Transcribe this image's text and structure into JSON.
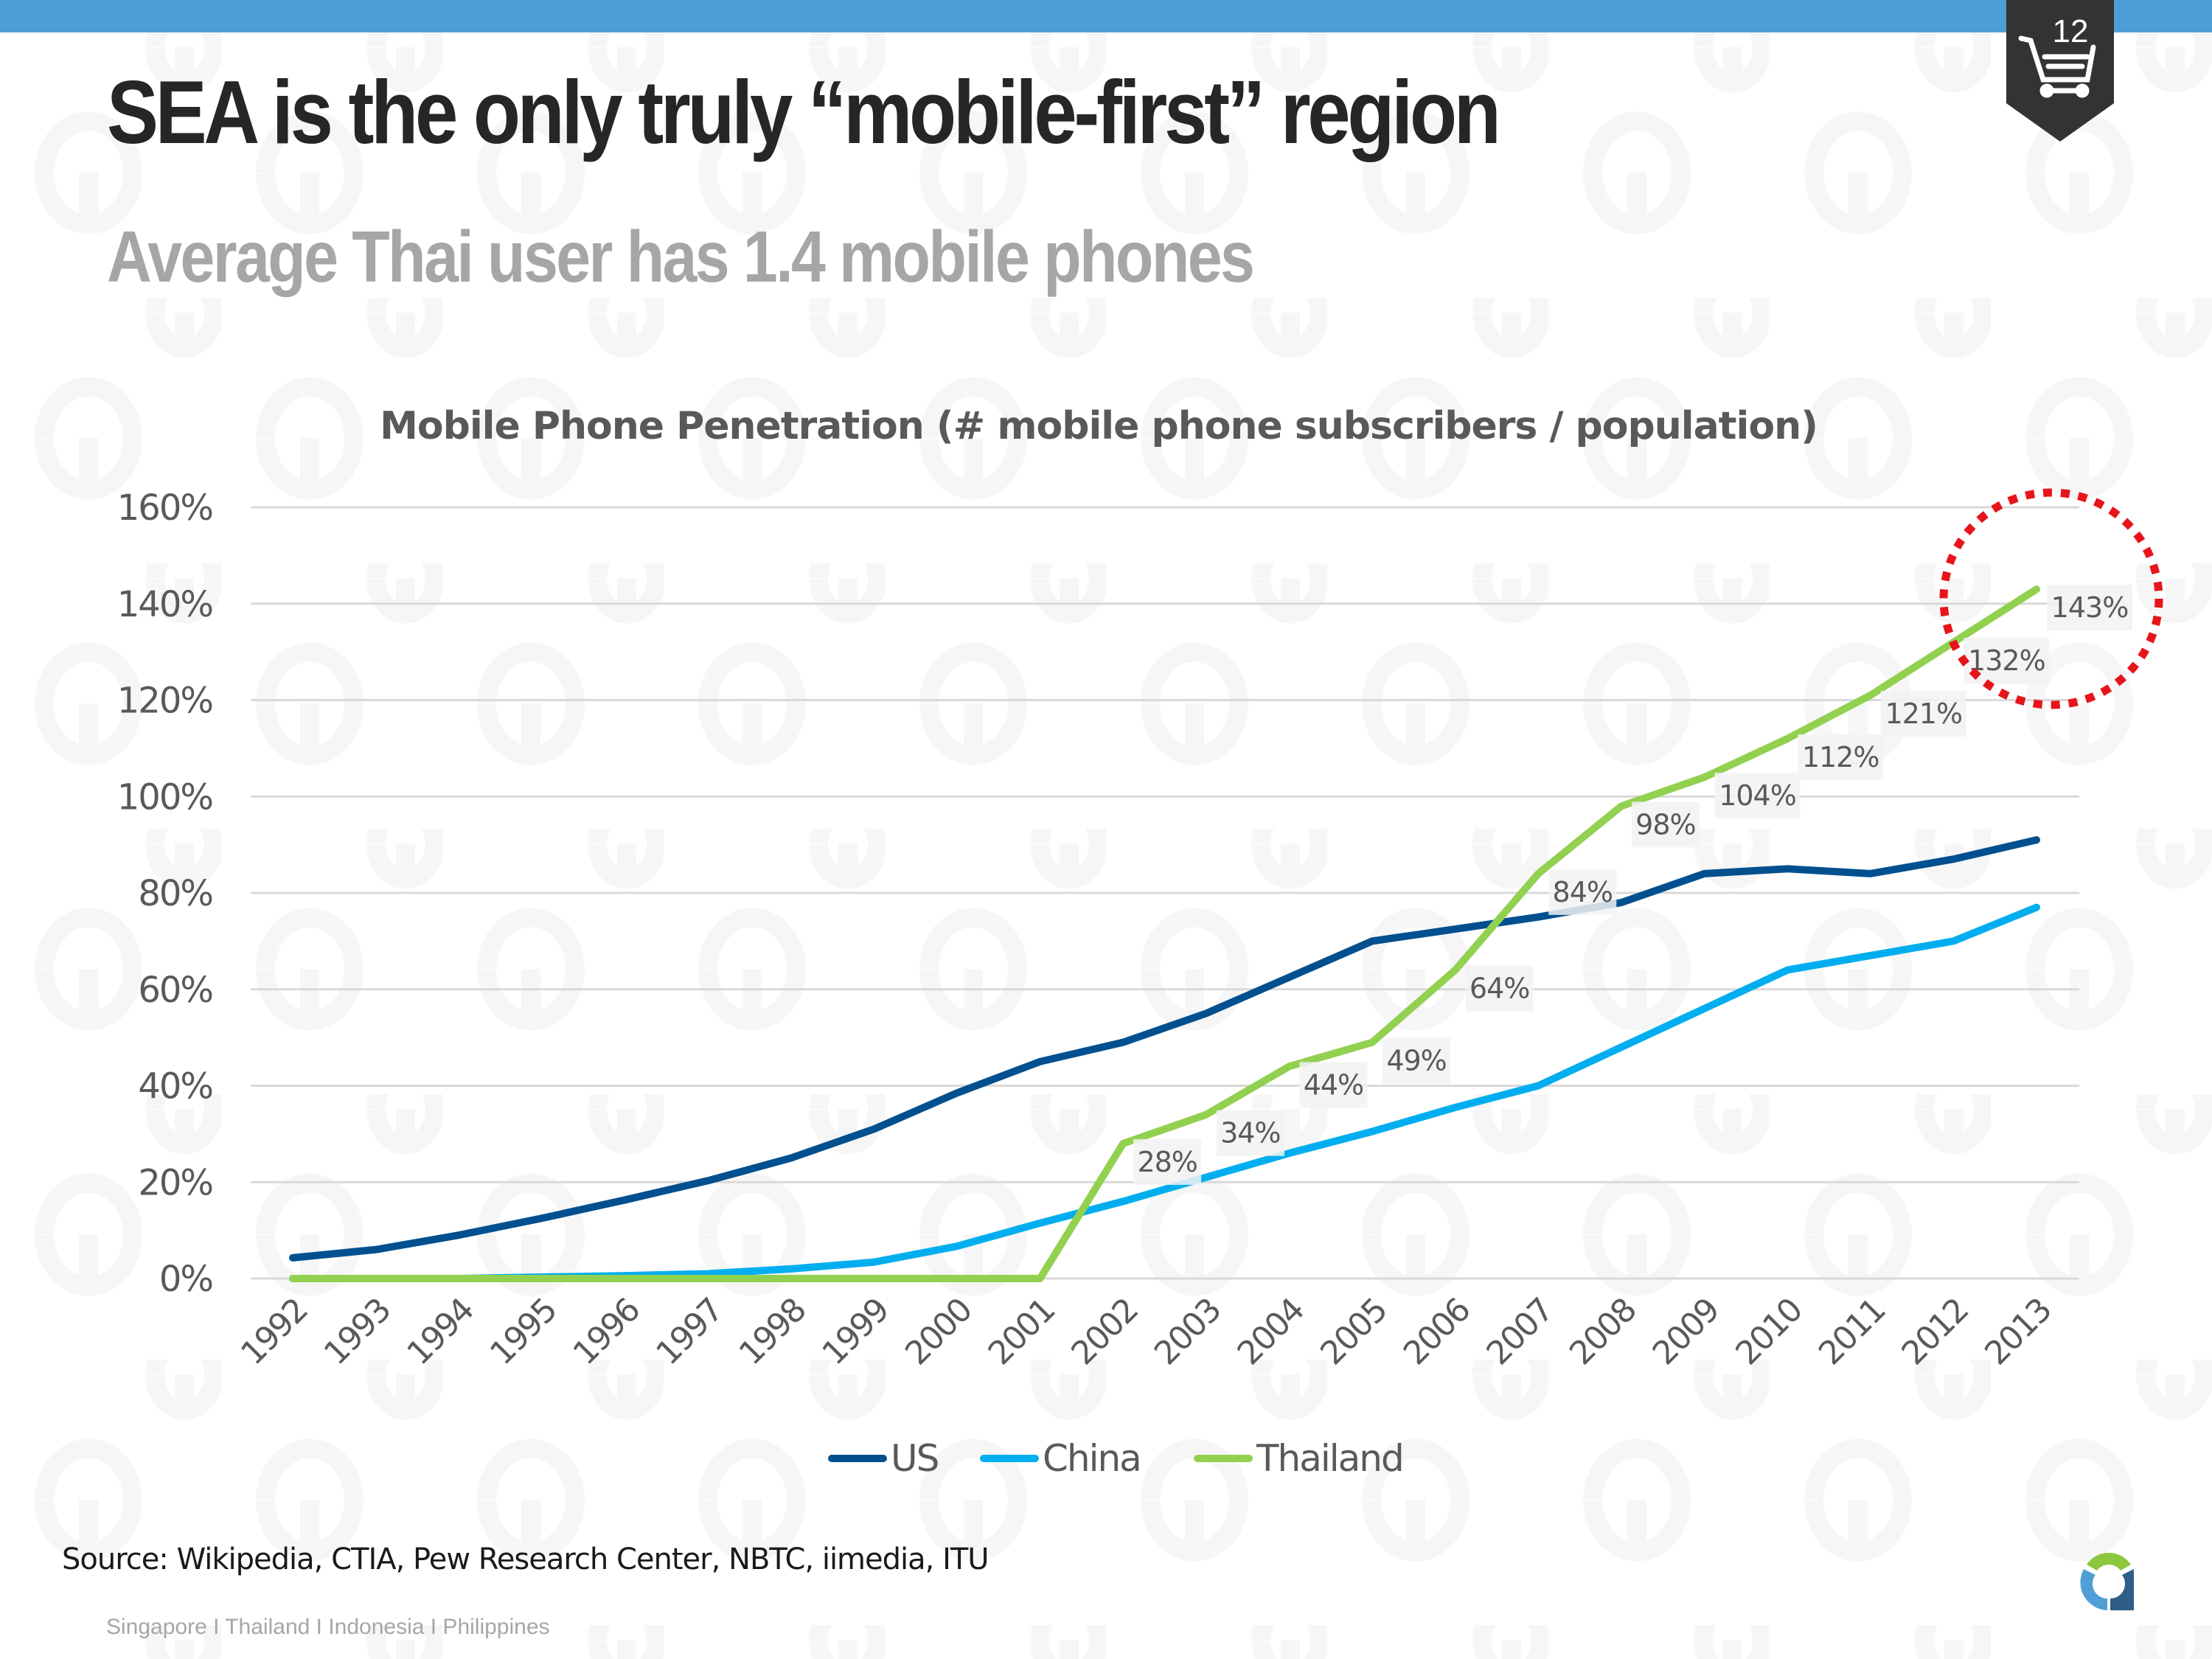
{
  "slide": {
    "title": "SEA is the only truly “mobile-first” region",
    "subtitle": "Average Thai user has 1.4 mobile phones",
    "page_number": "12",
    "badge_icon": "shopping-cart-icon",
    "source": "Source: Wikipedia, CTIA, Pew Research Center, NBTC, iimedia, ITU",
    "footer": "Singapore I Thailand I Indonesia I Philippines",
    "logo": "company-logo-a",
    "colors": {
      "top_bar": "#4f9fd6",
      "badge": "#333333",
      "highlight_circle": "#e8141b"
    }
  },
  "chart_data": {
    "type": "line",
    "title": "Mobile Phone Penetration (# mobile phone subscribers / population)",
    "xlabel": "",
    "ylabel": "",
    "x": [
      "1992",
      "1993",
      "1994",
      "1995",
      "1996",
      "1997",
      "1998",
      "1999",
      "2000",
      "2001",
      "2002",
      "2003",
      "2004",
      "2005",
      "2006",
      "2007",
      "2008",
      "2009",
      "2010",
      "2011",
      "2012",
      "2013"
    ],
    "ylim": [
      0,
      160
    ],
    "yticks": [
      0,
      20,
      40,
      60,
      80,
      100,
      120,
      140,
      160
    ],
    "ytick_labels": [
      "0%",
      "20%",
      "40%",
      "60%",
      "80%",
      "100%",
      "120%",
      "140%",
      "160%"
    ],
    "grid": true,
    "legend": "bottom",
    "series": [
      {
        "name": "US",
        "color": "#00508f",
        "values": [
          4.3,
          6,
          9,
          12.5,
          16.3,
          20.3,
          25,
          31,
          38.5,
          45,
          49,
          55,
          62.5,
          70,
          72.5,
          75,
          78,
          84,
          85,
          84,
          87,
          91
        ],
        "labels": []
      },
      {
        "name": "China",
        "color": "#00aeef",
        "values": [
          0,
          0,
          0,
          0.3,
          0.6,
          1,
          2,
          3.4,
          6.7,
          11.5,
          16,
          21,
          26,
          30.5,
          35.5,
          40,
          48,
          56,
          64,
          67,
          70,
          77
        ],
        "labels": []
      },
      {
        "name": "Thailand",
        "color": "#92d050",
        "values": [
          0,
          0,
          0,
          0,
          0,
          0,
          0,
          0,
          0,
          0,
          28,
          34,
          44,
          49,
          64,
          84,
          98,
          104,
          112,
          121,
          132,
          143
        ],
        "labels": [
          "",
          "",
          "",
          "",
          "",
          "",
          "",
          "",
          "",
          "",
          "28%",
          "34%",
          "44%",
          "49%",
          "64%",
          "84%",
          "98%",
          "104%",
          "112%",
          "121%",
          "132%",
          "143%"
        ]
      }
    ],
    "annotation": "dotted red circle highlighting Thailand 2012–2013 values"
  }
}
